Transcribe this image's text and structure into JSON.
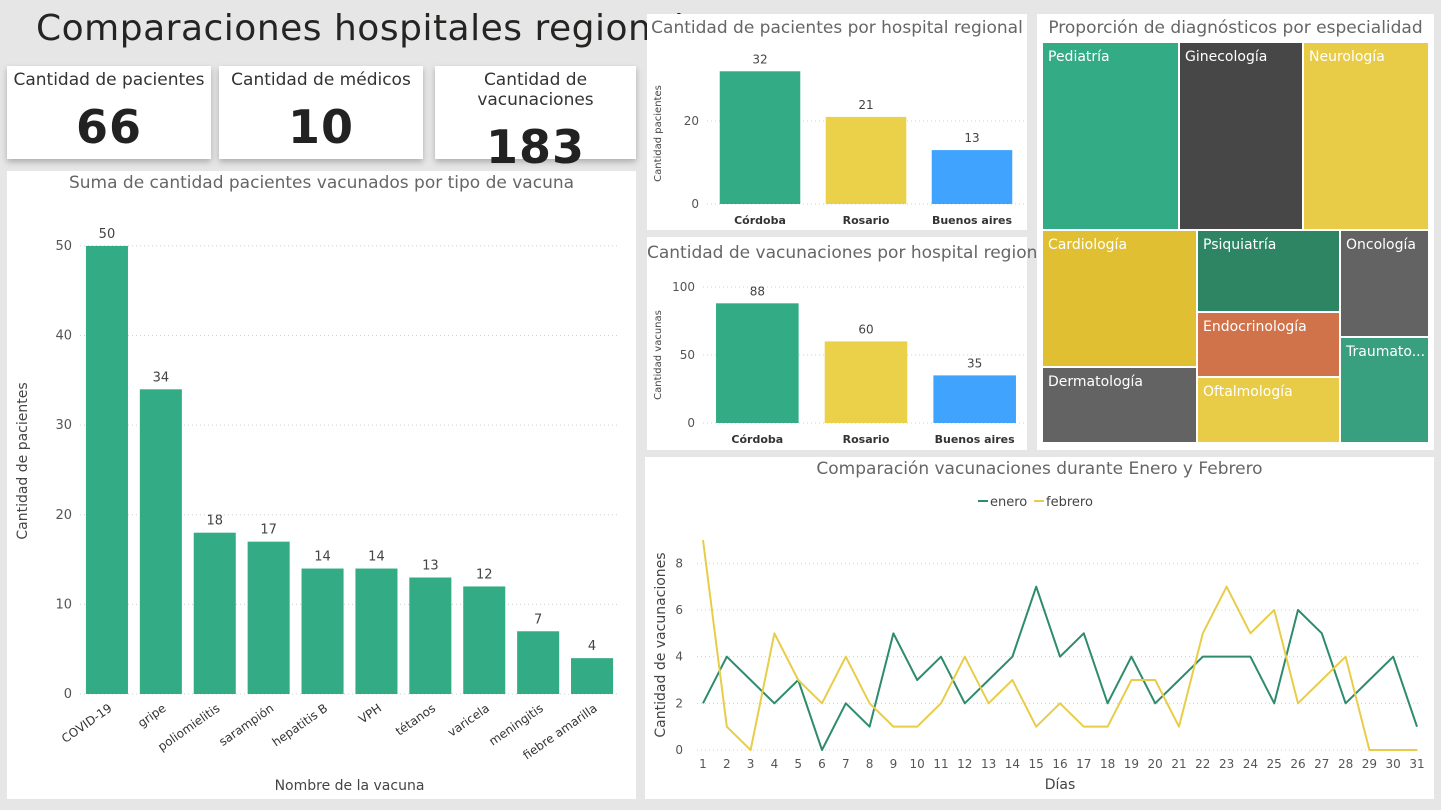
{
  "page": {
    "title": "Comparaciones hospitales regionales"
  },
  "cards": [
    {
      "label": "Cantidad de pacientes",
      "value": "66"
    },
    {
      "label": "Cantidad de médicos",
      "value": "10"
    },
    {
      "label": "Cantidad de vacunaciones",
      "value": "183"
    }
  ],
  "colors": {
    "green": "#33ab84",
    "yellow": "#ebd049",
    "blue": "#40a4ff",
    "line_green": "#2e8b6b",
    "line_yellow": "#e8cd4a"
  },
  "chart_data": [
    {
      "id": "vaccines",
      "type": "bar",
      "title": "Suma de cantidad pacientes vacunados por tipo de vacuna",
      "xlabel": "Nombre de la vacuna",
      "ylabel": "Cantidad de pacientes",
      "categories": [
        "COVID-19",
        "gripe",
        "poliomielitis",
        "sarampión",
        "hepatitis B",
        "VPH",
        "tétanos",
        "varicela",
        "meningitis",
        "fiebre amarilla"
      ],
      "values": [
        50,
        34,
        18,
        17,
        14,
        14,
        13,
        12,
        7,
        4
      ],
      "yticks": [
        0,
        10,
        20,
        30,
        40,
        50
      ],
      "ylim": [
        0,
        52
      ],
      "grid": true
    },
    {
      "id": "patients",
      "type": "bar",
      "title": "Cantidad de pacientes por hospital regional",
      "xlabel": "",
      "ylabel": "Cantidad pacientes",
      "categories": [
        "Córdoba",
        "Rosario",
        "Buenos aires"
      ],
      "values": [
        32,
        21,
        13
      ],
      "yticks": [
        0,
        20
      ],
      "ylim": [
        0,
        34
      ],
      "grid": true
    },
    {
      "id": "vaccinations",
      "type": "bar",
      "title": "Cantidad de vacunaciones por hospital regional",
      "xlabel": "",
      "ylabel": "Cantidad vacunas",
      "categories": [
        "Córdoba",
        "Rosario",
        "Buenos aires"
      ],
      "values": [
        88,
        60,
        35
      ],
      "yticks": [
        0,
        50,
        100
      ],
      "ylim": [
        0,
        100
      ],
      "grid": true
    },
    {
      "id": "diagnoses",
      "type": "treemap",
      "title": "Proporción de diagnósticos por especialidad",
      "items": [
        {
          "name": "Pediatría",
          "color": "#33ab84"
        },
        {
          "name": "Ginecología",
          "color": "#474747"
        },
        {
          "name": "Neurología",
          "color": "#e8cc47"
        },
        {
          "name": "Cardiología",
          "color": "#e0c032"
        },
        {
          "name": "Psiquiatría",
          "color": "#2d8563"
        },
        {
          "name": "Oncología",
          "color": "#636363"
        },
        {
          "name": "Endocrinología",
          "color": "#d1734a"
        },
        {
          "name": "Traumato...",
          "color": "#38a07e"
        },
        {
          "name": "Dermatología",
          "color": "#636363"
        },
        {
          "name": "Oftalmología",
          "color": "#e8cc47"
        }
      ]
    },
    {
      "id": "monthly",
      "type": "line",
      "title": "Comparación vacunaciones durante Enero y Febrero",
      "xlabel": "Días",
      "ylabel": "Cantidad de vacunaciones",
      "x": [
        1,
        2,
        3,
        4,
        5,
        6,
        7,
        8,
        9,
        10,
        11,
        12,
        13,
        14,
        15,
        16,
        17,
        18,
        19,
        20,
        21,
        22,
        23,
        24,
        25,
        26,
        27,
        28,
        29,
        30,
        31
      ],
      "yticks": [
        0,
        2,
        4,
        6,
        8
      ],
      "ylim": [
        0,
        9
      ],
      "legend": "top",
      "grid": true,
      "series": [
        {
          "name": "enero",
          "values": [
            2,
            4,
            3,
            2,
            3,
            0,
            2,
            1,
            5,
            3,
            4,
            2,
            3,
            4,
            7,
            4,
            5,
            2,
            4,
            2,
            3,
            4,
            4,
            4,
            2,
            6,
            5,
            2,
            3,
            4,
            1
          ]
        },
        {
          "name": "febrero",
          "values": [
            9,
            1,
            0,
            5,
            3,
            2,
            4,
            2,
            1,
            1,
            2,
            4,
            2,
            3,
            1,
            2,
            1,
            1,
            3,
            3,
            1,
            5,
            7,
            5,
            6,
            2,
            3,
            4,
            0,
            0,
            0
          ]
        }
      ]
    }
  ]
}
